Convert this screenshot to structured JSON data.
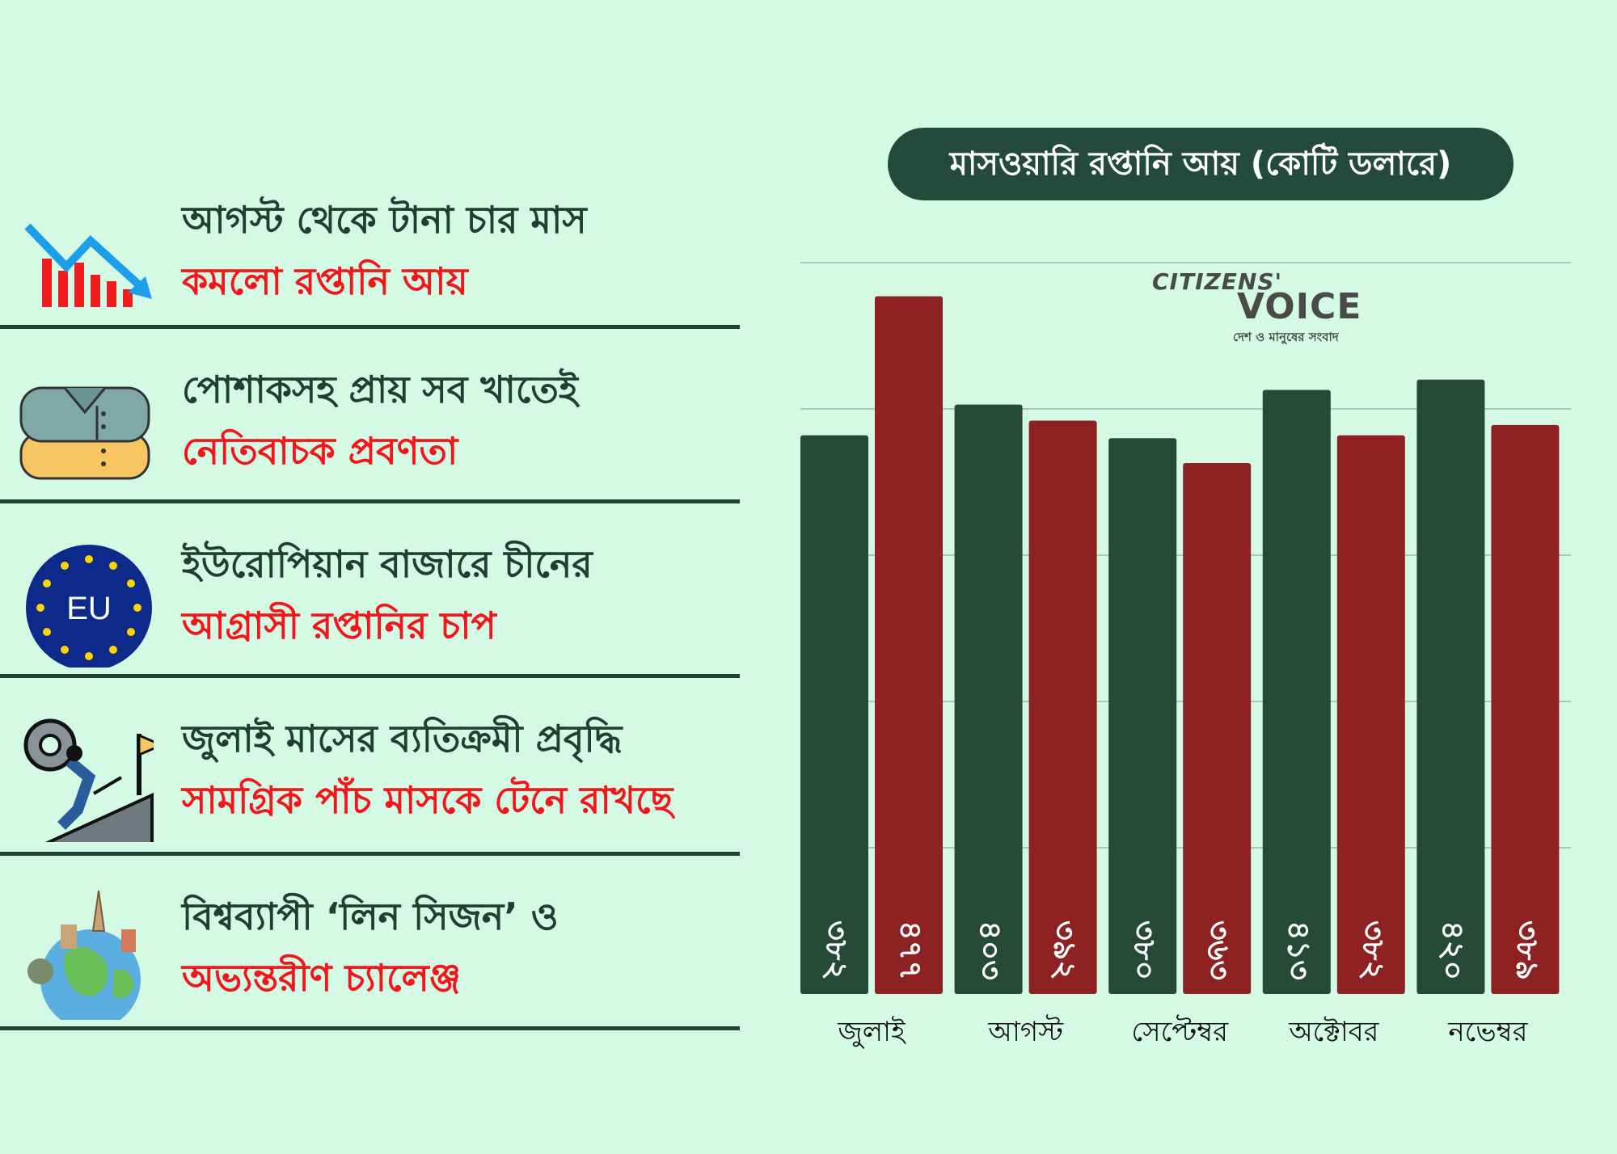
{
  "points": [
    {
      "line1": "আগস্ট থেকে টানা চার মাস",
      "line2": "কমলো রপ্তানি আয়",
      "icon": "declining-bar-chart-icon"
    },
    {
      "line1": "পোশাকসহ প্রায় সব খাতেই",
      "line2": "নেতিবাচক প্রবণতা",
      "icon": "folded-shirts-icon"
    },
    {
      "line1": "ইউরোপিয়ান বাজারে চীনের",
      "line2": "আগ্রাসী রপ্তানির চাপ",
      "icon": "eu-flag-icon",
      "icon_text": "EU"
    },
    {
      "line1": "জুলাই মাসের ব্যতিক্রমী প্রবৃদ্ধি",
      "line2": "সামগ্রিক পাঁচ মাসকে টেনে রাখছে",
      "icon": "person-pushing-gear-uphill-icon"
    },
    {
      "line1": "বিশ্বব্যাপী ‘লিন সিজন’ ও",
      "line2": "অভ্যন্তরীণ চ্যালেঞ্জ",
      "icon": "globe-landmarks-icon"
    }
  ],
  "watermark": {
    "brand_top": "CITIZENS'",
    "brand_main": "VOICE",
    "tagline": "দেশ ও মানুষের সংবাদ"
  },
  "colors": {
    "background": "#d4fae6",
    "dark_green": "#264a39",
    "dark_red": "#8e2222",
    "highlight_red": "#f2161b"
  },
  "chart_data": {
    "type": "bar",
    "title": "মাসওয়ারি রপ্তানি আয় (কোটি ডলারে)",
    "categories": [
      "জুলাই",
      "আগস্ট",
      "সেপ্টেম্বর",
      "অক্টোবর",
      "নভেম্বর"
    ],
    "series": [
      {
        "values": [
          382,
          403,
          380,
          413,
          420
        ],
        "labels": [
          "৩৮২",
          "৪০৩",
          "৩৮০",
          "৪১৩",
          "৪২০"
        ],
        "color": "#264a39"
      },
      {
        "values": [
          477,
          392,
          363,
          382,
          389
        ],
        "labels": [
          "৪৭৭",
          "৩৯২",
          "৩৬৩",
          "৩৮২",
          "৩৮৯"
        ],
        "color": "#8e2222"
      }
    ],
    "ylim": [
      0,
      500
    ],
    "grid": true,
    "gridline_step": 100
  }
}
